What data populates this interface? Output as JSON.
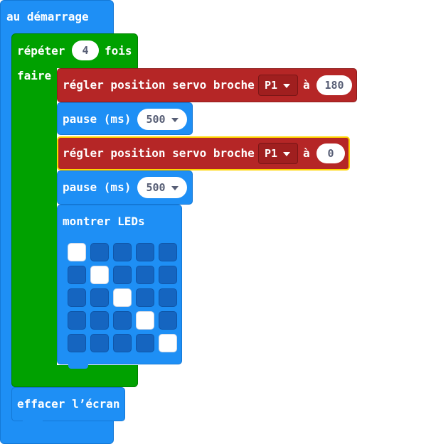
{
  "event_block": {
    "label": "au démarrage",
    "color": "#1e90ff"
  },
  "repeat_block": {
    "label_repeat": "répéter",
    "count": "4",
    "label_times": "fois",
    "label_do": "faire",
    "color": "#00a000"
  },
  "servo_block_1": {
    "label": "régler position servo broche",
    "pin": "P1",
    "label_to": "à",
    "value": "180",
    "color": "#b32424"
  },
  "pause_block_1": {
    "label": "pause (ms)",
    "value": "500"
  },
  "servo_block_2": {
    "label": "régler position servo broche",
    "pin": "P1",
    "label_to": "à",
    "value": "0",
    "selected": true,
    "highlight_color": "#ffd400"
  },
  "pause_block_2": {
    "label": "pause (ms)",
    "value": "500"
  },
  "show_leds_block": {
    "label": "montrer LEDs",
    "grid": [
      [
        1,
        0,
        0,
        0,
        0
      ],
      [
        0,
        1,
        0,
        0,
        0
      ],
      [
        0,
        0,
        1,
        0,
        0
      ],
      [
        0,
        0,
        0,
        1,
        0
      ],
      [
        0,
        0,
        0,
        0,
        1
      ]
    ]
  },
  "clear_screen_block": {
    "label": "effacer l’écran"
  }
}
